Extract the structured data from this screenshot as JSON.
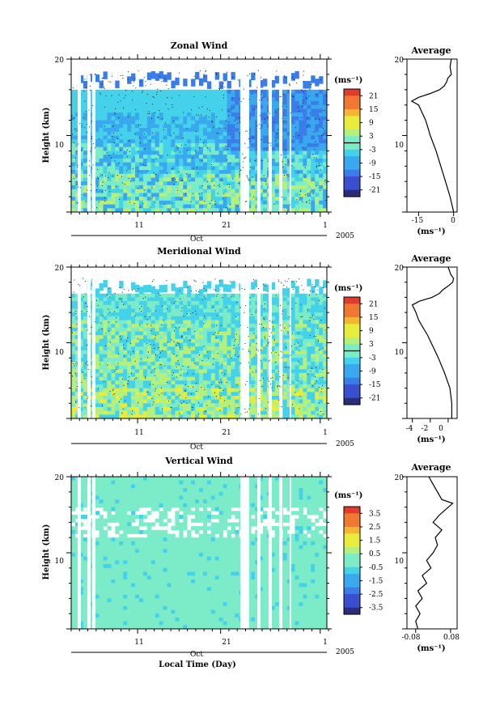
{
  "figure": {
    "xlabel": "Local Time (Day)",
    "month_label": "Oct",
    "year_label": "2005",
    "x_tick_labels": [
      "11",
      "21",
      "1"
    ]
  },
  "colors": {
    "colorbar_stops": [
      "#2b2d7a",
      "#3a4fd0",
      "#3a7de8",
      "#3aa8ee",
      "#44d2ea",
      "#7cebc8",
      "#b6f07c",
      "#e8ec3a",
      "#f5b432",
      "#f07832",
      "#e03c2e"
    ],
    "missing": "#ffffff",
    "contour": "#000000"
  },
  "chart_data": [
    {
      "type": "heatmap",
      "title": "Zonal Wind",
      "ylabel": "Height (km)",
      "ylim": [
        0,
        20
      ],
      "y_ticks": [
        10,
        20
      ],
      "colorbar": {
        "unit": "(ms⁻¹)",
        "tick_labels": [
          "21",
          "15",
          "9",
          "3",
          "-3",
          "-9",
          "-15",
          "-21"
        ],
        "range": [
          -24,
          24
        ],
        "zero_line": true
      },
      "average_profile": {
        "title": "Average",
        "xlabel": "(ms⁻¹)",
        "x_ticks": [
          -15,
          0
        ],
        "xlim": [
          -20,
          1.5
        ],
        "height": [
          0,
          2,
          4,
          6,
          8,
          10,
          11,
          12,
          13,
          14,
          14.5,
          15,
          15.5,
          16,
          16.5,
          17,
          17.5,
          18,
          19,
          20
        ],
        "value": [
          0,
          -1.5,
          -3.5,
          -5.5,
          -7.5,
          -10,
          -11,
          -12,
          -13.5,
          -15,
          -18,
          -15,
          -10,
          -6,
          -4,
          -3,
          -2.5,
          -1,
          -1.5,
          -1
        ]
      }
    },
    {
      "type": "heatmap",
      "title": "Meridional Wind",
      "ylabel": "Height (km)",
      "ylim": [
        0,
        20
      ],
      "y_ticks": [
        10,
        20
      ],
      "colorbar": {
        "unit": "(ms⁻¹)",
        "tick_labels": [
          "21",
          "15",
          "9",
          "3",
          "-3",
          "-9",
          "-15",
          "-21"
        ],
        "range": [
          -24,
          24
        ],
        "zero_line": true
      },
      "average_profile": {
        "title": "Average",
        "xlabel": "(ms⁻¹)",
        "x_ticks": [
          -4,
          -2,
          0
        ],
        "xlim": [
          -4.6,
          1.0
        ],
        "height": [
          0,
          2,
          4,
          6,
          8,
          10,
          11,
          12,
          13,
          14,
          15,
          15.5,
          16,
          16.5,
          17,
          17.5,
          18,
          18.5,
          19,
          20
        ],
        "value": [
          0.4,
          0.4,
          0.2,
          -0.4,
          -1.1,
          -1.9,
          -2.3,
          -2.8,
          -3.3,
          -3.6,
          -4.0,
          -3.2,
          -1.8,
          -1.0,
          -0.6,
          0.0,
          0.5,
          0.6,
          0.3,
          0.0
        ]
      }
    },
    {
      "type": "heatmap",
      "title": "Vertical Wind",
      "ylabel": "Height (km)",
      "ylim": [
        0,
        20
      ],
      "y_ticks": [
        10,
        20
      ],
      "colorbar": {
        "unit": "(ms⁻¹)",
        "tick_labels": [
          "3.5",
          "2.5",
          "1.5",
          "0.5",
          "-0.5",
          "-1.5",
          "-2.5",
          "-3.5"
        ],
        "range": [
          -4,
          4
        ],
        "zero_line": false
      },
      "average_profile": {
        "title": "Average",
        "xlabel": "(ms⁻¹)",
        "x_ticks": [
          -0.08,
          0.08
        ],
        "x_tick_labels": [
          "-0.08",
          "0.08"
        ],
        "xlim": [
          -0.12,
          0.11
        ],
        "height": [
          0,
          1,
          2,
          3,
          4,
          5,
          6,
          7,
          8,
          9,
          10,
          11,
          12,
          13,
          14,
          15,
          16,
          16.5,
          17,
          18,
          19,
          20
        ],
        "value": [
          -0.07,
          -0.08,
          -0.06,
          -0.08,
          -0.05,
          -0.07,
          -0.03,
          -0.05,
          -0.01,
          -0.03,
          0.0,
          0.02,
          0.01,
          0.04,
          0.0,
          0.03,
          0.07,
          0.09,
          0.04,
          0.02,
          0.0,
          -0.02
        ]
      }
    }
  ]
}
